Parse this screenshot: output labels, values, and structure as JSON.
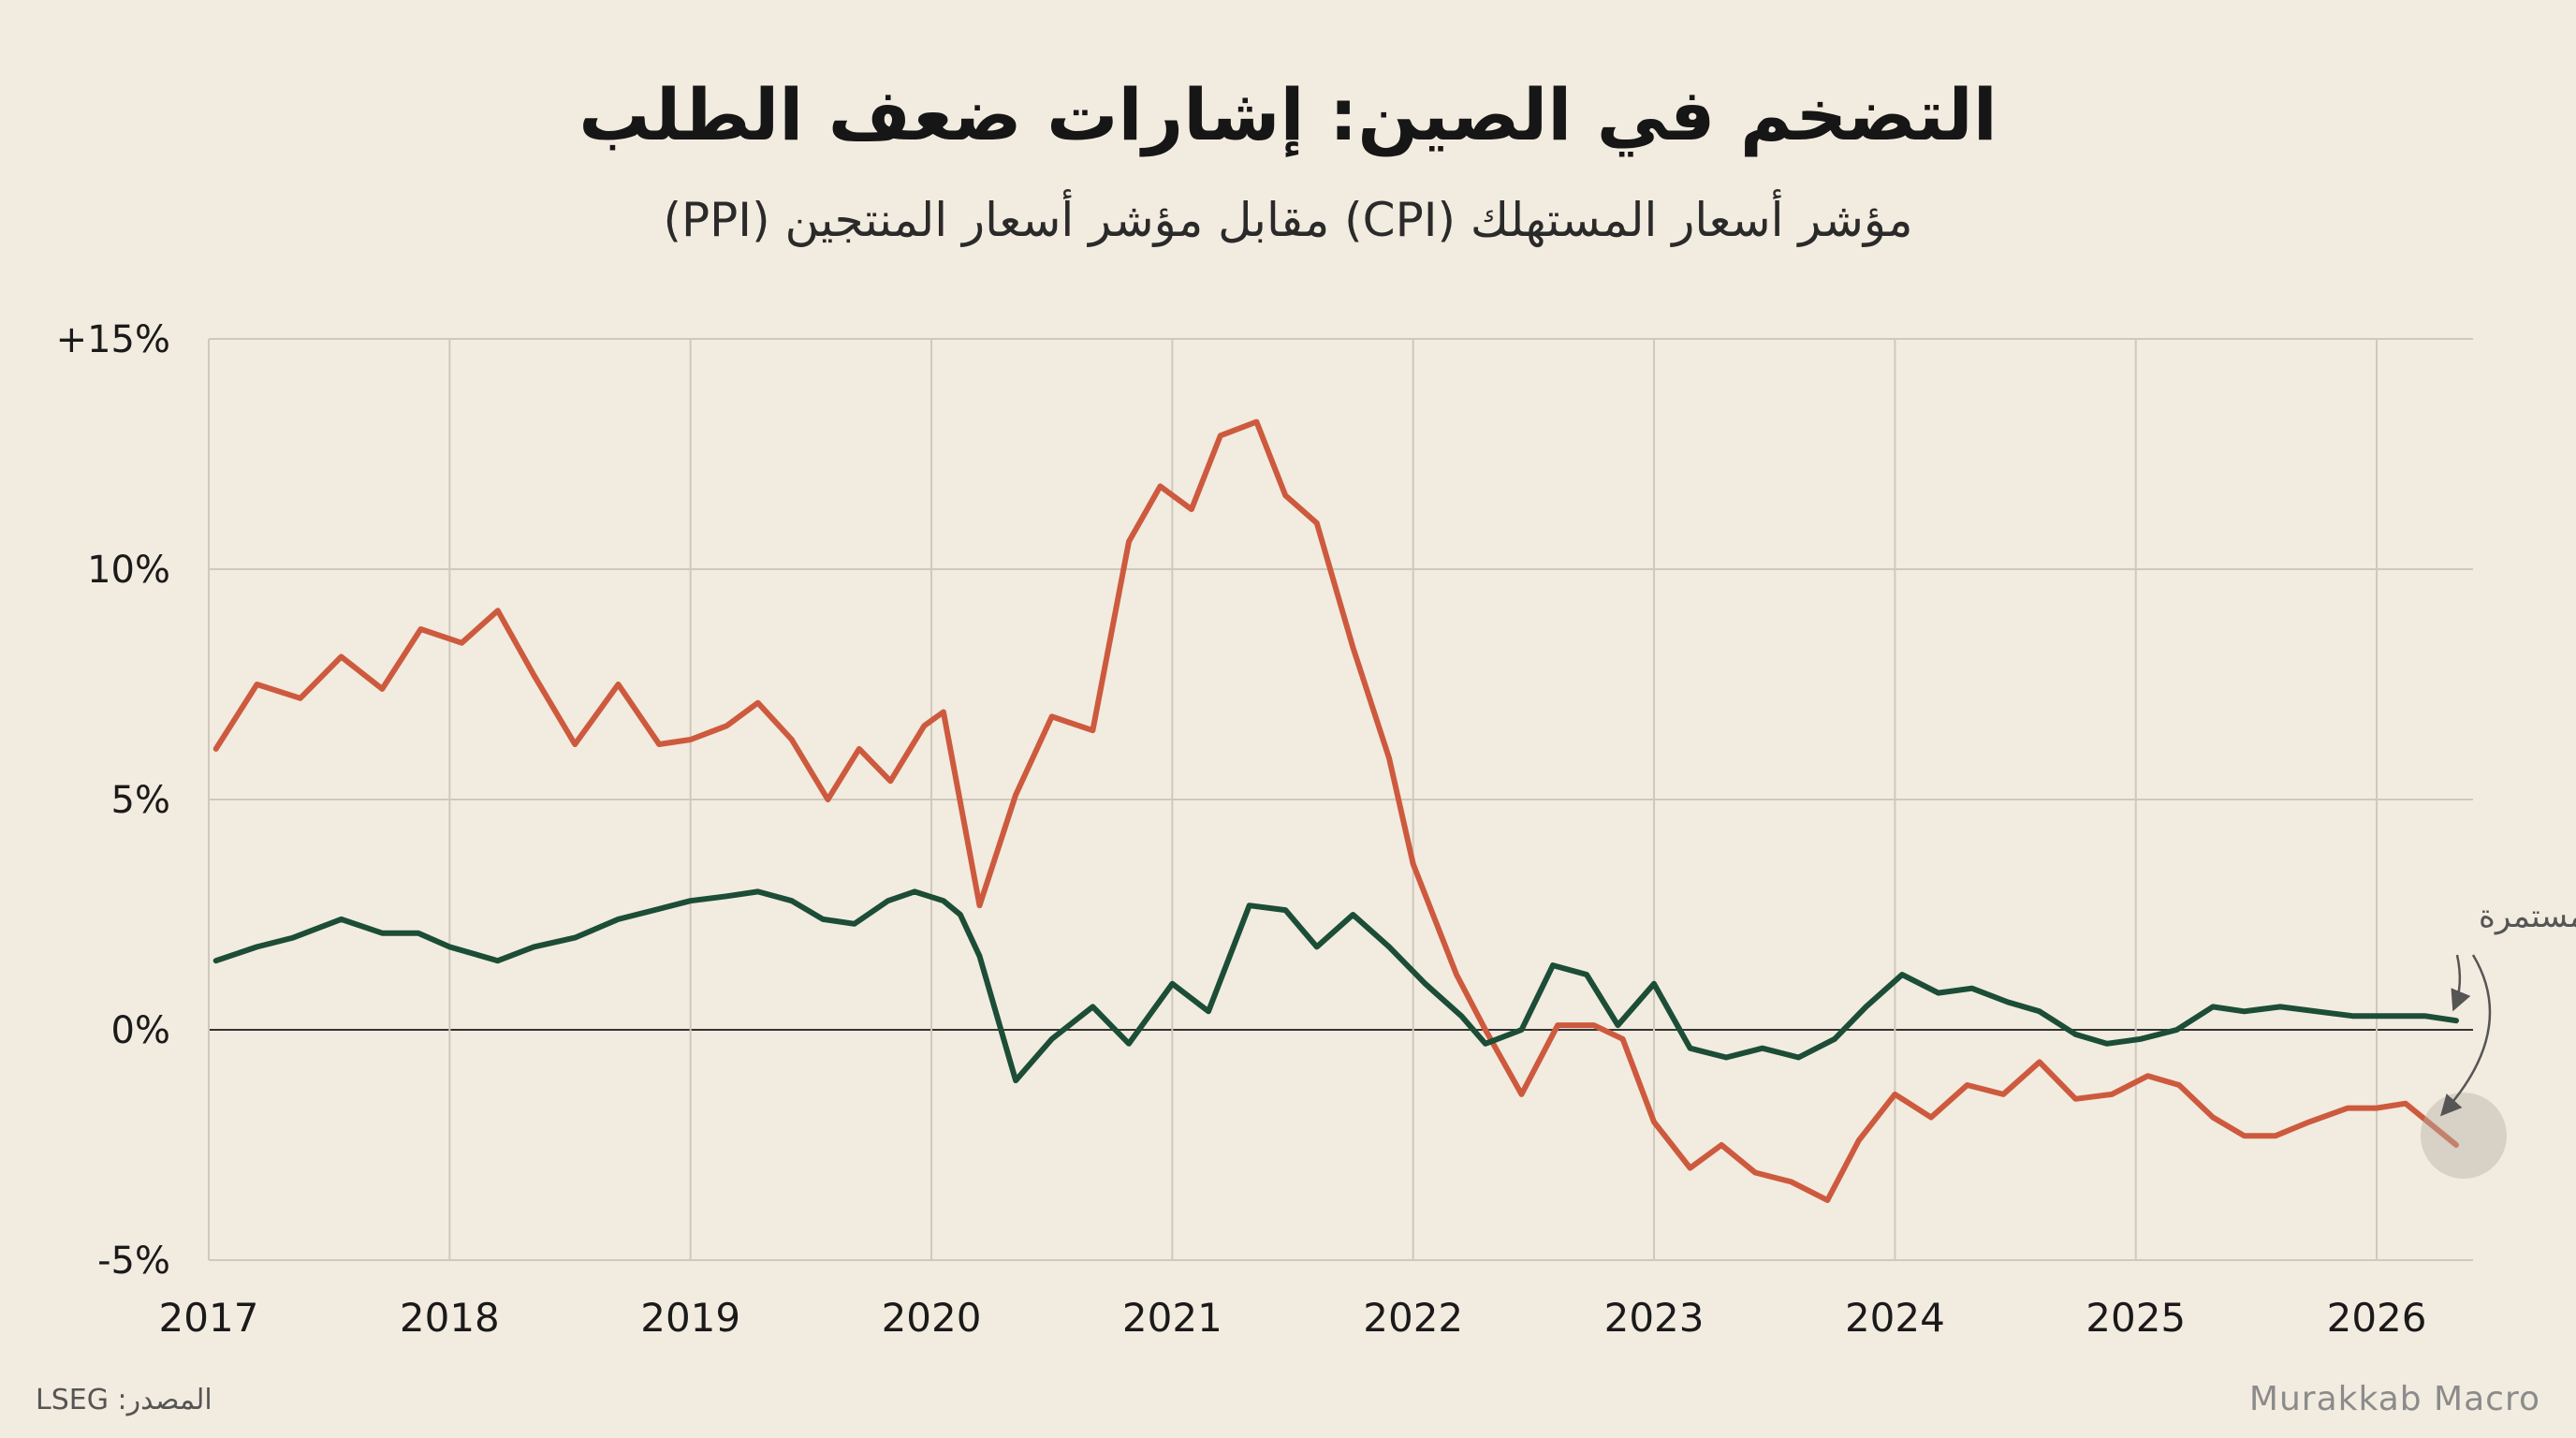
{
  "header": {
    "title": "التضخم في الصين: إشارات ضعف الطلب",
    "subtitle": "مؤشر أسعار المستهلك (CPI) مقابل مؤشر أسعار المنتجين (PPI)"
  },
  "footer": {
    "source": "المصدر: LSEG",
    "brand": "Murakkab Macro"
  },
  "colors": {
    "cpi": "#1c4d36",
    "ppi": "#cd5a3e",
    "grid": "#cfc8bc",
    "zero_line": "#333333",
    "text": "#1a1a1a",
    "annotation": "#555555"
  },
  "chart_data": {
    "type": "line",
    "title": "التضخم في الصين: إشارات ضعف الطلب",
    "subtitle": "مؤشر أسعار المستهلك (CPI) مقابل مؤشر أسعار المنتجين (PPI)",
    "xlabel": "",
    "ylabel": "",
    "xlim": [
      2017,
      2026.4
    ],
    "ylim": [
      -5,
      15
    ],
    "x_ticks": [
      2017,
      2018,
      2019,
      2020,
      2021,
      2022,
      2023,
      2024,
      2025,
      2026
    ],
    "x_tick_labels": [
      "2017",
      "2018",
      "2019",
      "2020",
      "2021",
      "2022",
      "2023",
      "2024",
      "2025",
      "2026"
    ],
    "y_ticks": [
      -5,
      0,
      5,
      10,
      15
    ],
    "y_tick_labels": [
      "-5%",
      "0%",
      "5%",
      "10%",
      "+15%"
    ],
    "grid": true,
    "annotation": "ضغوط انكماشية مستمرة",
    "series": [
      {
        "name": "PPI",
        "x": [
          2017.03,
          2017.2,
          2017.38,
          2017.55,
          2017.72,
          2017.88,
          2018.05,
          2018.2,
          2018.35,
          2018.52,
          2018.7,
          2018.87,
          2019.0,
          2019.15,
          2019.28,
          2019.42,
          2019.57,
          2019.7,
          2019.83,
          2019.97,
          2020.05,
          2020.2,
          2020.35,
          2020.5,
          2020.67,
          2020.82,
          2020.95,
          2021.08,
          2021.2,
          2021.35,
          2021.47,
          2021.6,
          2021.75,
          2021.9,
          2022.0,
          2022.18,
          2022.3,
          2022.45,
          2022.6,
          2022.75,
          2022.87,
          2023.0,
          2023.15,
          2023.28,
          2023.42,
          2023.57,
          2023.72,
          2023.85,
          2024.0,
          2024.15,
          2024.3,
          2024.45,
          2024.6,
          2024.75,
          2024.9,
          2025.05,
          2025.18,
          2025.32,
          2025.45,
          2025.58,
          2025.72,
          2025.88,
          2026.0,
          2026.12,
          2026.33
        ],
        "values": [
          6.1,
          7.5,
          7.2,
          8.1,
          7.4,
          8.7,
          8.4,
          9.1,
          7.7,
          6.2,
          7.5,
          6.2,
          6.3,
          6.6,
          7.1,
          6.3,
          5.0,
          6.1,
          5.4,
          6.6,
          6.9,
          2.7,
          5.1,
          6.8,
          6.5,
          10.6,
          11.8,
          11.3,
          12.9,
          13.2,
          11.6,
          11.0,
          8.3,
          5.9,
          3.6,
          1.2,
          0.0,
          -1.4,
          0.1,
          0.1,
          -0.2,
          -2.0,
          -3.0,
          -2.5,
          -3.1,
          -3.3,
          -3.7,
          -2.4,
          -1.4,
          -1.9,
          -1.2,
          -1.4,
          -0.7,
          -1.5,
          -1.4,
          -1.0,
          -1.2,
          -1.9,
          -2.3,
          -2.3,
          -2.0,
          -1.7,
          -1.7,
          -1.6,
          -2.5
        ]
      },
      {
        "name": "CPI",
        "x": [
          2017.03,
          2017.2,
          2017.35,
          2017.55,
          2017.72,
          2017.87,
          2018.0,
          2018.2,
          2018.35,
          2018.52,
          2018.7,
          2018.85,
          2019.0,
          2019.15,
          2019.28,
          2019.42,
          2019.55,
          2019.68,
          2019.82,
          2019.93,
          2020.05,
          2020.12,
          2020.2,
          2020.35,
          2020.5,
          2020.67,
          2020.82,
          2021.0,
          2021.15,
          2021.32,
          2021.47,
          2021.6,
          2021.75,
          2021.9,
          2022.05,
          2022.2,
          2022.3,
          2022.45,
          2022.58,
          2022.72,
          2022.85,
          2023.0,
          2023.15,
          2023.3,
          2023.45,
          2023.6,
          2023.75,
          2023.88,
          2024.03,
          2024.18,
          2024.32,
          2024.47,
          2024.6,
          2024.75,
          2024.88,
          2025.02,
          2025.17,
          2025.32,
          2025.45,
          2025.6,
          2025.75,
          2025.9,
          2026.05,
          2026.2,
          2026.33
        ],
        "values": [
          1.5,
          1.8,
          2.0,
          2.4,
          2.1,
          2.1,
          1.8,
          1.5,
          1.8,
          2.0,
          2.4,
          2.6,
          2.8,
          2.9,
          3.0,
          2.8,
          2.4,
          2.3,
          2.8,
          3.0,
          2.8,
          2.5,
          1.6,
          -1.1,
          -0.2,
          0.5,
          -0.3,
          1.0,
          0.4,
          2.7,
          2.6,
          1.8,
          2.5,
          1.8,
          1.0,
          0.3,
          -0.3,
          0.0,
          1.4,
          1.2,
          0.1,
          1.0,
          -0.4,
          -0.6,
          -0.4,
          -0.6,
          -0.2,
          0.5,
          1.2,
          0.8,
          0.9,
          0.6,
          0.4,
          -0.1,
          -0.3,
          -0.2,
          0.0,
          0.5,
          0.4,
          0.5,
          0.4,
          0.3,
          0.3,
          0.3,
          0.2
        ]
      }
    ]
  }
}
